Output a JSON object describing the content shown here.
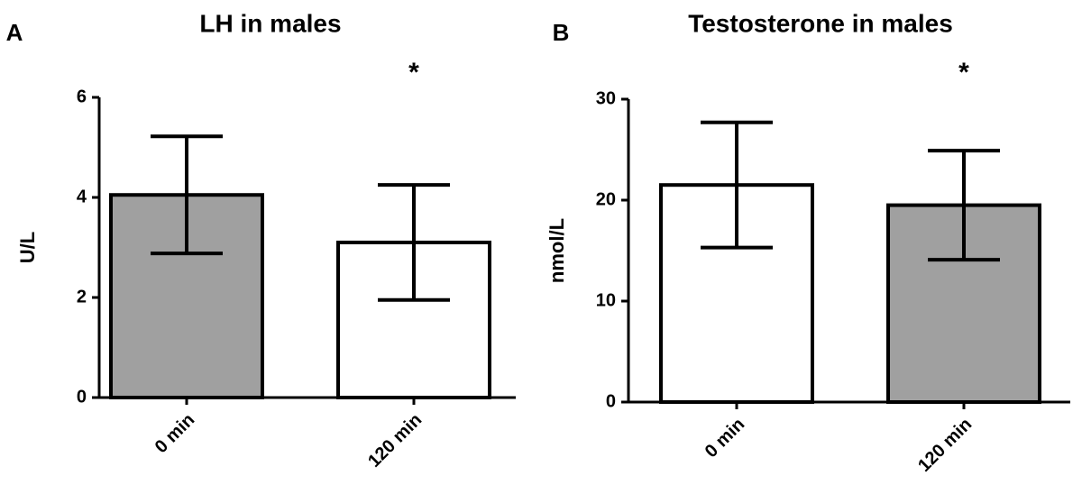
{
  "chart_data": [
    {
      "type": "bar",
      "panel_label": "A",
      "title": "LH in males",
      "y_label": "U/L",
      "categories": [
        "0 min",
        "120 min"
      ],
      "values": [
        4.05,
        3.1
      ],
      "errors": [
        1.17,
        1.15
      ],
      "colors": [
        "#a0a0a0",
        "#ffffff"
      ],
      "ylim": [
        0,
        6
      ],
      "yticks": [
        0,
        2,
        4,
        6
      ],
      "annotation": "*"
    },
    {
      "type": "bar",
      "panel_label": "B",
      "title": "Testosterone in males",
      "y_label": "nmol/L",
      "categories": [
        "0 min",
        "120 min"
      ],
      "values": [
        21.5,
        19.5
      ],
      "errors": [
        6.2,
        5.4
      ],
      "colors": [
        "#ffffff",
        "#a0a0a0"
      ],
      "ylim": [
        0,
        30
      ],
      "yticks": [
        0,
        10,
        20,
        30
      ],
      "annotation": "*"
    }
  ]
}
